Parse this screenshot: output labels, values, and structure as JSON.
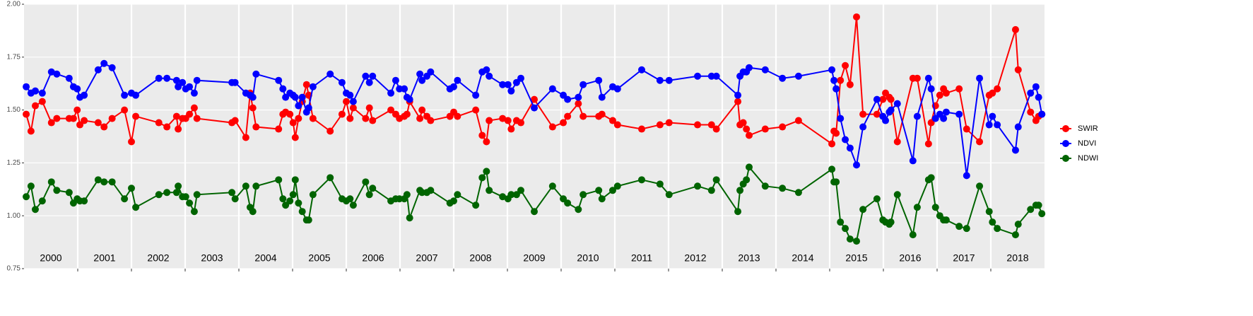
{
  "chart_data": {
    "type": "line",
    "x": [
      2000.04,
      2000.13,
      2000.21,
      2000.34,
      2000.51,
      2000.61,
      2000.84,
      2000.92,
      2000.99,
      2001.04,
      2001.12,
      2001.38,
      2001.49,
      2001.64,
      2001.87,
      2002.0,
      2002.08,
      2002.51,
      2002.66,
      2002.84,
      2002.87,
      2002.95,
      2003.01,
      2003.08,
      2003.17,
      2003.22,
      2003.87,
      2003.93,
      2004.13,
      2004.21,
      2004.26,
      2004.32,
      2004.74,
      2004.82,
      2004.87,
      2004.95,
      2005.01,
      2005.05,
      2005.11,
      2005.18,
      2005.26,
      2005.3,
      2005.38,
      2005.7,
      2005.92,
      2006.0,
      2006.07,
      2006.13,
      2006.36,
      2006.43,
      2006.49,
      2006.83,
      2006.92,
      2006.99,
      2007.08,
      2007.13,
      2007.18,
      2007.37,
      2007.41,
      2007.5,
      2007.57,
      2007.93,
      2008.0,
      2008.07,
      2008.41,
      2008.53,
      2008.61,
      2008.66,
      2008.91,
      2009.01,
      2009.07,
      2009.17,
      2009.25,
      2009.5,
      2009.84,
      2010.04,
      2010.12,
      2010.32,
      2010.41,
      2010.7,
      2010.76,
      2010.96,
      2011.05,
      2011.5,
      2011.84,
      2012.01,
      2012.54,
      2012.8,
      2012.89,
      2013.29,
      2013.33,
      2013.39,
      2013.45,
      2013.5,
      2013.8,
      2014.12,
      2014.42,
      2015.04,
      2015.08,
      2015.12,
      2015.2,
      2015.29,
      2015.38,
      2015.5,
      2015.62,
      2015.88,
      2015.99,
      2016.04,
      2016.11,
      2016.14,
      2016.26,
      2016.55,
      2016.63,
      2016.84,
      2016.89,
      2016.97,
      2017.05,
      2017.12,
      2017.17,
      2017.41,
      2017.55,
      2017.79,
      2017.97,
      2018.03,
      2018.12,
      2018.46,
      2018.51,
      2018.74,
      2018.84,
      2018.89,
      2018.95
    ],
    "series": [
      {
        "name": "SWIR",
        "color": "#ff0000",
        "values": [
          1.48,
          1.4,
          1.52,
          1.54,
          1.44,
          1.46,
          1.46,
          1.46,
          1.5,
          1.43,
          1.45,
          1.44,
          1.42,
          1.46,
          1.5,
          1.35,
          1.47,
          1.44,
          1.42,
          1.47,
          1.41,
          1.46,
          1.46,
          1.48,
          1.51,
          1.46,
          1.44,
          1.45,
          1.37,
          1.58,
          1.51,
          1.42,
          1.41,
          1.48,
          1.49,
          1.48,
          1.44,
          1.37,
          1.46,
          1.54,
          1.62,
          1.57,
          1.46,
          1.4,
          1.48,
          1.54,
          1.46,
          1.51,
          1.46,
          1.51,
          1.45,
          1.5,
          1.48,
          1.46,
          1.47,
          1.48,
          1.54,
          1.46,
          1.5,
          1.47,
          1.45,
          1.47,
          1.49,
          1.47,
          1.5,
          1.38,
          1.35,
          1.45,
          1.46,
          1.45,
          1.41,
          1.45,
          1.44,
          1.55,
          1.42,
          1.44,
          1.47,
          1.53,
          1.47,
          1.47,
          1.48,
          1.45,
          1.43,
          1.41,
          1.43,
          1.44,
          1.43,
          1.43,
          1.41,
          1.54,
          1.43,
          1.44,
          1.41,
          1.38,
          1.41,
          1.42,
          1.45,
          1.34,
          1.4,
          1.39,
          1.64,
          1.71,
          1.62,
          1.94,
          1.48,
          1.48,
          1.55,
          1.58,
          1.56,
          1.55,
          1.35,
          1.65,
          1.65,
          1.34,
          1.44,
          1.52,
          1.57,
          1.6,
          1.58,
          1.6,
          1.41,
          1.35,
          1.57,
          1.58,
          1.6,
          1.88,
          1.69,
          1.49,
          1.45,
          1.47,
          1.48
        ]
      },
      {
        "name": "NDVI",
        "color": "#0000ff",
        "values": [
          1.61,
          1.58,
          1.59,
          1.58,
          1.68,
          1.67,
          1.65,
          1.61,
          1.6,
          1.56,
          1.57,
          1.69,
          1.72,
          1.7,
          1.57,
          1.58,
          1.57,
          1.65,
          1.65,
          1.64,
          1.61,
          1.63,
          1.6,
          1.61,
          1.58,
          1.64,
          1.63,
          1.63,
          1.58,
          1.57,
          1.56,
          1.67,
          1.64,
          1.6,
          1.56,
          1.58,
          1.57,
          1.56,
          1.52,
          1.56,
          1.49,
          1.51,
          1.61,
          1.67,
          1.63,
          1.58,
          1.57,
          1.54,
          1.66,
          1.63,
          1.66,
          1.58,
          1.64,
          1.6,
          1.6,
          1.56,
          1.55,
          1.67,
          1.64,
          1.66,
          1.68,
          1.6,
          1.61,
          1.64,
          1.57,
          1.68,
          1.69,
          1.66,
          1.62,
          1.62,
          1.59,
          1.63,
          1.65,
          1.51,
          1.6,
          1.57,
          1.55,
          1.56,
          1.62,
          1.64,
          1.56,
          1.61,
          1.6,
          1.69,
          1.64,
          1.64,
          1.66,
          1.66,
          1.66,
          1.57,
          1.66,
          1.68,
          1.68,
          1.7,
          1.69,
          1.65,
          1.66,
          1.69,
          1.64,
          1.6,
          1.46,
          1.36,
          1.32,
          1.24,
          1.42,
          1.55,
          1.47,
          1.45,
          1.49,
          1.5,
          1.53,
          1.26,
          1.47,
          1.65,
          1.6,
          1.46,
          1.48,
          1.46,
          1.49,
          1.48,
          1.19,
          1.65,
          1.43,
          1.47,
          1.43,
          1.31,
          1.42,
          1.58,
          1.61,
          1.56,
          1.48
        ]
      },
      {
        "name": "NDWI",
        "color": "#006400",
        "values": [
          1.09,
          1.14,
          1.03,
          1.07,
          1.16,
          1.12,
          1.11,
          1.06,
          1.08,
          1.07,
          1.07,
          1.17,
          1.16,
          1.16,
          1.08,
          1.13,
          1.04,
          1.1,
          1.11,
          1.11,
          1.14,
          1.09,
          1.09,
          1.06,
          1.02,
          1.1,
          1.11,
          1.08,
          1.14,
          1.04,
          1.02,
          1.14,
          1.17,
          1.08,
          1.05,
          1.07,
          1.1,
          1.17,
          1.06,
          1.02,
          0.98,
          0.98,
          1.1,
          1.18,
          1.08,
          1.07,
          1.08,
          1.05,
          1.16,
          1.1,
          1.13,
          1.07,
          1.08,
          1.08,
          1.08,
          1.1,
          0.99,
          1.12,
          1.11,
          1.11,
          1.12,
          1.06,
          1.07,
          1.1,
          1.05,
          1.18,
          1.21,
          1.12,
          1.09,
          1.08,
          1.1,
          1.1,
          1.12,
          1.02,
          1.14,
          1.08,
          1.06,
          1.03,
          1.1,
          1.12,
          1.08,
          1.12,
          1.14,
          1.17,
          1.15,
          1.1,
          1.14,
          1.12,
          1.17,
          1.02,
          1.12,
          1.15,
          1.17,
          1.23,
          1.14,
          1.13,
          1.11,
          1.22,
          1.16,
          1.16,
          0.97,
          0.94,
          0.89,
          0.88,
          1.03,
          1.08,
          0.98,
          0.97,
          0.96,
          0.97,
          1.1,
          0.91,
          1.04,
          1.17,
          1.18,
          1.04,
          1.0,
          0.98,
          0.98,
          0.95,
          0.94,
          1.14,
          1.02,
          0.97,
          0.94,
          0.91,
          0.96,
          1.03,
          1.05,
          1.05,
          1.01
        ]
      }
    ],
    "xlim": [
      2000,
      2019
    ],
    "xticks": [
      2001,
      2002,
      2003,
      2004,
      2005,
      2006,
      2007,
      2008,
      2009,
      2010,
      2011,
      2012,
      2013,
      2014,
      2015,
      2016,
      2017,
      2018
    ],
    "year_labels": [
      "2000",
      "2001",
      "2002",
      "2003",
      "2004",
      "2005",
      "2006",
      "2007",
      "2008",
      "2009",
      "2010",
      "2011",
      "2012",
      "2013",
      "2014",
      "2015",
      "2016",
      "2017",
      "2018"
    ],
    "ylim": [
      0.75,
      2.0
    ],
    "yticks": [
      {
        "value": 0.75,
        "label": "0.75"
      },
      {
        "value": 1.0,
        "label": "1.00"
      },
      {
        "value": 1.25,
        "label": "1.25"
      },
      {
        "value": 1.5,
        "label": "1.50"
      },
      {
        "value": 1.75,
        "label": "1.75"
      },
      {
        "value": 2.0,
        "label": "2.00"
      }
    ],
    "grid": true,
    "legend": "right"
  }
}
